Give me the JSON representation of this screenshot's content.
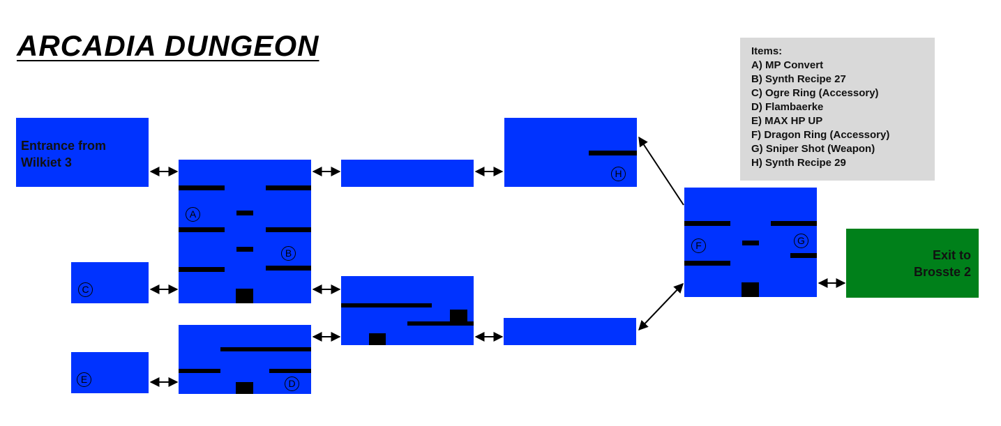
{
  "title": "ARCADIA DUNGEON",
  "rooms": {
    "entrance": {
      "label_line1": "Entrance from",
      "label_line2": "Wilkiet 3"
    },
    "exit": {
      "label_line1": "Exit to",
      "label_line2": "Brosste 2"
    }
  },
  "markers": {
    "A": "A",
    "B": "B",
    "C": "C",
    "D": "D",
    "E": "E",
    "F": "F",
    "G": "G",
    "H": "H"
  },
  "legend": {
    "heading": "Items:",
    "items": [
      "A) MP Convert",
      "B) Synth Recipe 27",
      "C) Ogre Ring (Accessory)",
      "D) Flambaerke",
      "E) MAX HP UP",
      "F) Dragon Ring (Accessory)",
      "G) Sniper Shot (Weapon)",
      "H) Synth Recipe 29"
    ]
  },
  "colors": {
    "room": "#0033ff",
    "exit_room": "#00801a",
    "wall": "#000000",
    "legend_bg": "#d9d9d9"
  }
}
